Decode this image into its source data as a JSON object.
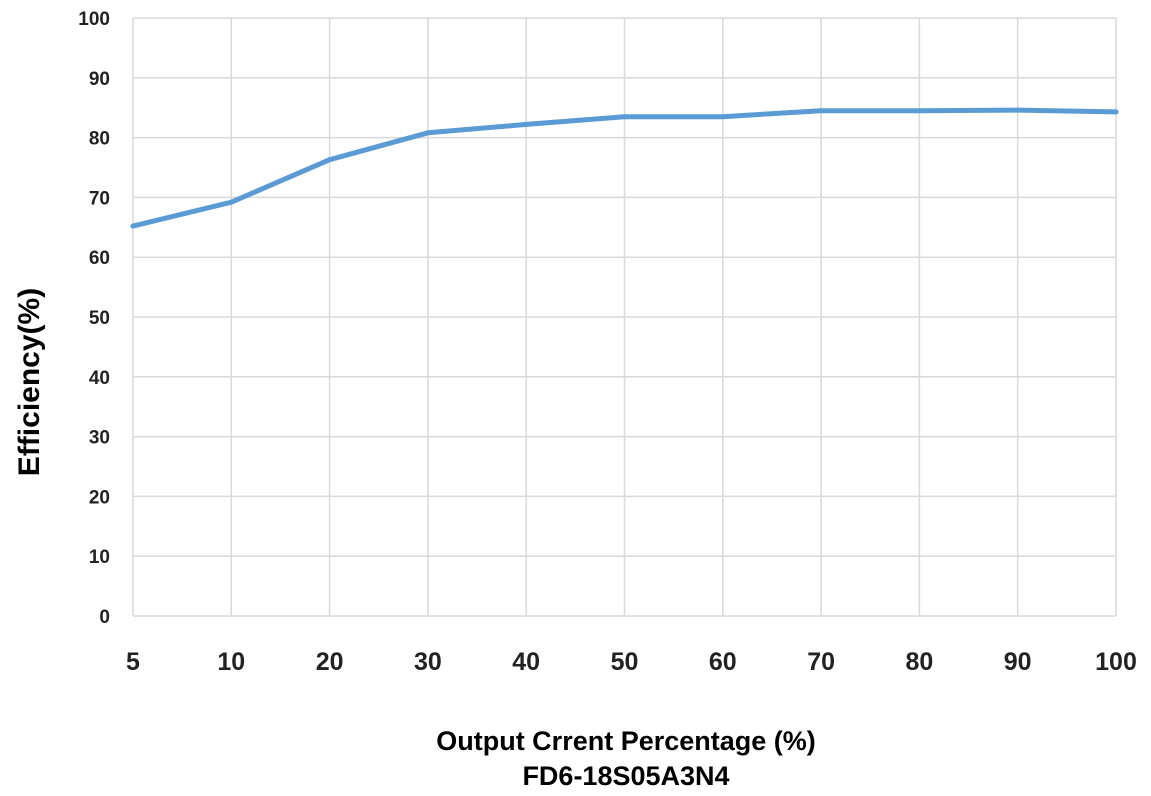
{
  "chart_data": {
    "type": "line",
    "title": "FD6-18S05A3N4",
    "xlabel": "Output Crrent Percentage (%)",
    "ylabel": "Efficiency(%)",
    "categories": [
      "5",
      "10",
      "20",
      "30",
      "40",
      "50",
      "60",
      "70",
      "80",
      "90",
      "100"
    ],
    "series": [
      {
        "values": [
          65.2,
          69.2,
          76.3,
          80.8,
          82.2,
          83.5,
          83.5,
          84.5,
          84.5,
          84.6,
          84.3
        ]
      }
    ],
    "ylim": [
      0,
      100
    ],
    "yticks": [
      "0",
      "10",
      "20",
      "30",
      "40",
      "50",
      "60",
      "70",
      "80",
      "90",
      "100"
    ],
    "grid": "on",
    "legend": "none",
    "colors": {
      "line": "#5b9bd5",
      "grid": "#d9d9d9"
    }
  }
}
